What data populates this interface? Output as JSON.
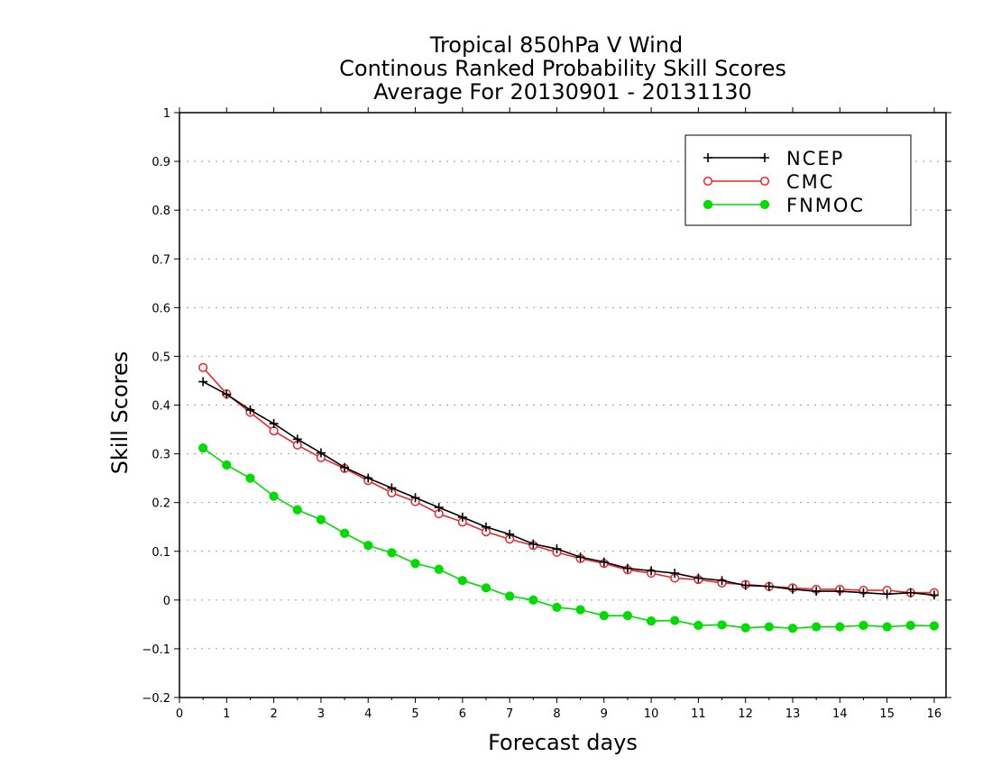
{
  "chart_data": {
    "type": "line",
    "title_lines": [
      "Tropical 850hPa V Wind",
      "Continous Ranked Probability Skill Scores",
      "Average For 20130901 - 20131130"
    ],
    "xlabel": "Forecast days",
    "ylabel": "Skill Scores",
    "xlim": [
      0,
      16.25
    ],
    "ylim": [
      -0.2,
      1
    ],
    "xticks": [
      0,
      1,
      2,
      3,
      4,
      5,
      6,
      7,
      8,
      9,
      10,
      11,
      12,
      13,
      14,
      15,
      16
    ],
    "yticks": [
      -0.2,
      -0.1,
      0,
      0.1,
      0.2,
      0.3,
      0.4,
      0.5,
      0.6,
      0.7,
      0.8,
      0.9,
      1
    ],
    "ytick_labels": [
      "−0.2",
      "−0.1",
      "0",
      "0.1",
      "0.2",
      "0.3",
      "0.4",
      "0.5",
      "0.6",
      "0.7",
      "0.8",
      "0.9",
      "1"
    ],
    "grid": true,
    "legend_position": "top-right",
    "x": [
      0.5,
      1,
      1.5,
      2,
      2.5,
      3,
      3.5,
      4,
      4.5,
      5,
      5.5,
      6,
      6.5,
      7,
      7.5,
      8,
      8.5,
      9,
      9.5,
      10,
      10.5,
      11,
      11.5,
      12,
      12.5,
      13,
      13.5,
      14,
      14.5,
      15,
      15.5,
      16
    ],
    "series": [
      {
        "name": "NCEP",
        "color": "#000000",
        "marker": "plus",
        "values": [
          0.448,
          0.422,
          0.39,
          0.362,
          0.33,
          0.302,
          0.272,
          0.25,
          0.23,
          0.21,
          0.19,
          0.17,
          0.15,
          0.135,
          0.115,
          0.105,
          0.088,
          0.078,
          0.065,
          0.06,
          0.055,
          0.045,
          0.04,
          0.03,
          0.028,
          0.022,
          0.018,
          0.018,
          0.015,
          0.012,
          0.015,
          0.01
        ]
      },
      {
        "name": "CMC",
        "color": "#e8282d",
        "marker": "open-circle",
        "values": [
          0.477,
          0.423,
          0.385,
          0.347,
          0.318,
          0.292,
          0.27,
          0.245,
          0.22,
          0.202,
          0.177,
          0.16,
          0.14,
          0.125,
          0.112,
          0.098,
          0.085,
          0.075,
          0.062,
          0.055,
          0.045,
          0.042,
          0.035,
          0.032,
          0.028,
          0.025,
          0.022,
          0.022,
          0.02,
          0.02,
          0.015,
          0.015
        ]
      },
      {
        "name": "FNMOC",
        "color": "#00dc00",
        "marker": "filled-circle",
        "values": [
          0.312,
          0.277,
          0.25,
          0.213,
          0.185,
          0.165,
          0.137,
          0.112,
          0.097,
          0.075,
          0.063,
          0.04,
          0.025,
          0.008,
          0.0,
          -0.015,
          -0.02,
          -0.032,
          -0.032,
          -0.043,
          -0.042,
          -0.052,
          -0.051,
          -0.057,
          -0.055,
          -0.058,
          -0.055,
          -0.055,
          -0.052,
          -0.055,
          -0.052,
          -0.053
        ]
      }
    ]
  }
}
